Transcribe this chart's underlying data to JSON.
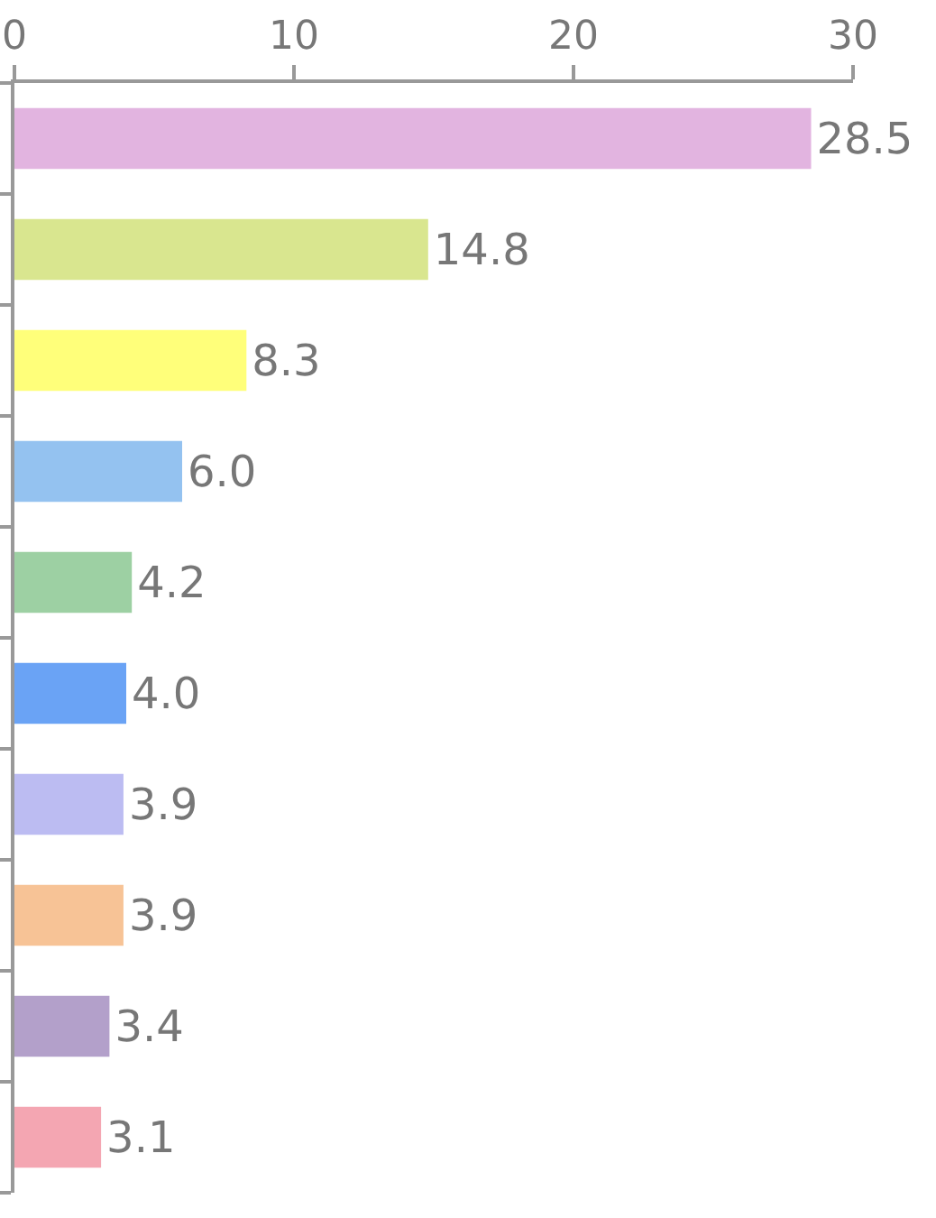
{
  "chart_data": {
    "type": "bar",
    "orientation": "horizontal",
    "categories": [
      null,
      null,
      null,
      null,
      null,
      null,
      null,
      null,
      null,
      null
    ],
    "values": [
      28.5,
      14.8,
      8.3,
      6.0,
      4.2,
      4.0,
      3.9,
      3.9,
      3.4,
      3.1
    ],
    "colors": [
      "#e2b4e0",
      "#d9e68f",
      "#ffff7a",
      "#94c2f0",
      "#9dd0a3",
      "#6aa3f5",
      "#bcbcf2",
      "#f7c396",
      "#b3a0ca",
      "#f4a6b2"
    ],
    "value_labels": [
      "28.5",
      "14.8",
      "8.3",
      "6.0",
      "4.2",
      "4.0",
      "3.9",
      "3.9",
      "3.4",
      "3.1"
    ],
    "xlim": [
      0,
      30
    ],
    "xticks": [
      0,
      10,
      20,
      30
    ],
    "tick_labels": "x",
    "grid": false
  }
}
